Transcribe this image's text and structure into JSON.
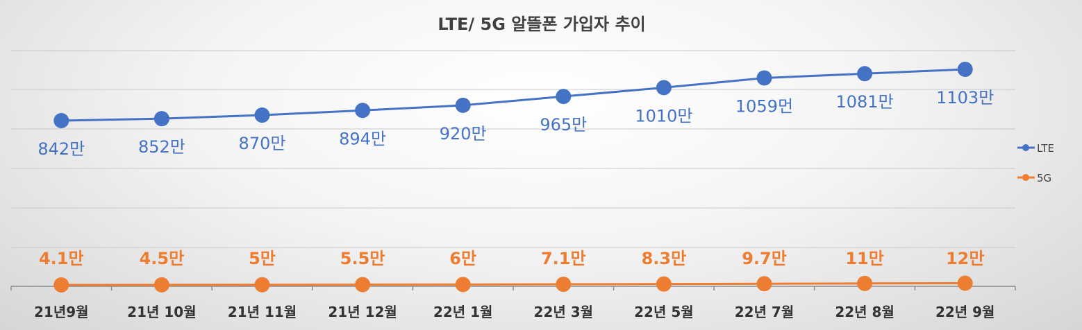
{
  "chart_data": {
    "type": "line",
    "title": "LTE/ 5G 알뜰폰 가입자 추이",
    "categories": [
      "21년9월",
      "21년 10월",
      "21년 11월",
      "21년 12월",
      "22년 1월",
      "22년 3월",
      "22년 5월",
      "22년 7월",
      "22년 8월",
      "22년 9월"
    ],
    "series": [
      {
        "name": "LTE",
        "color": "#4472c4",
        "values": [
          842,
          852,
          870,
          894,
          920,
          965,
          1010,
          1059,
          1081,
          1103
        ],
        "labels": [
          "842만",
          "852만",
          "870만",
          "894만",
          "920만",
          "965만",
          "1010만",
          "1059먼",
          "1081만",
          "1103만"
        ]
      },
      {
        "name": "5G",
        "color": "#ed7d31",
        "values": [
          4.1,
          4.5,
          5,
          5.5,
          6,
          7.1,
          8.3,
          9.7,
          11,
          12
        ],
        "labels": [
          "4.1만",
          "4.5만",
          "5만",
          "5.5만",
          "6만",
          "7.1만",
          "8.3만",
          "9.7만",
          "11만",
          "12만"
        ]
      }
    ],
    "grid": true,
    "legend": "right"
  }
}
